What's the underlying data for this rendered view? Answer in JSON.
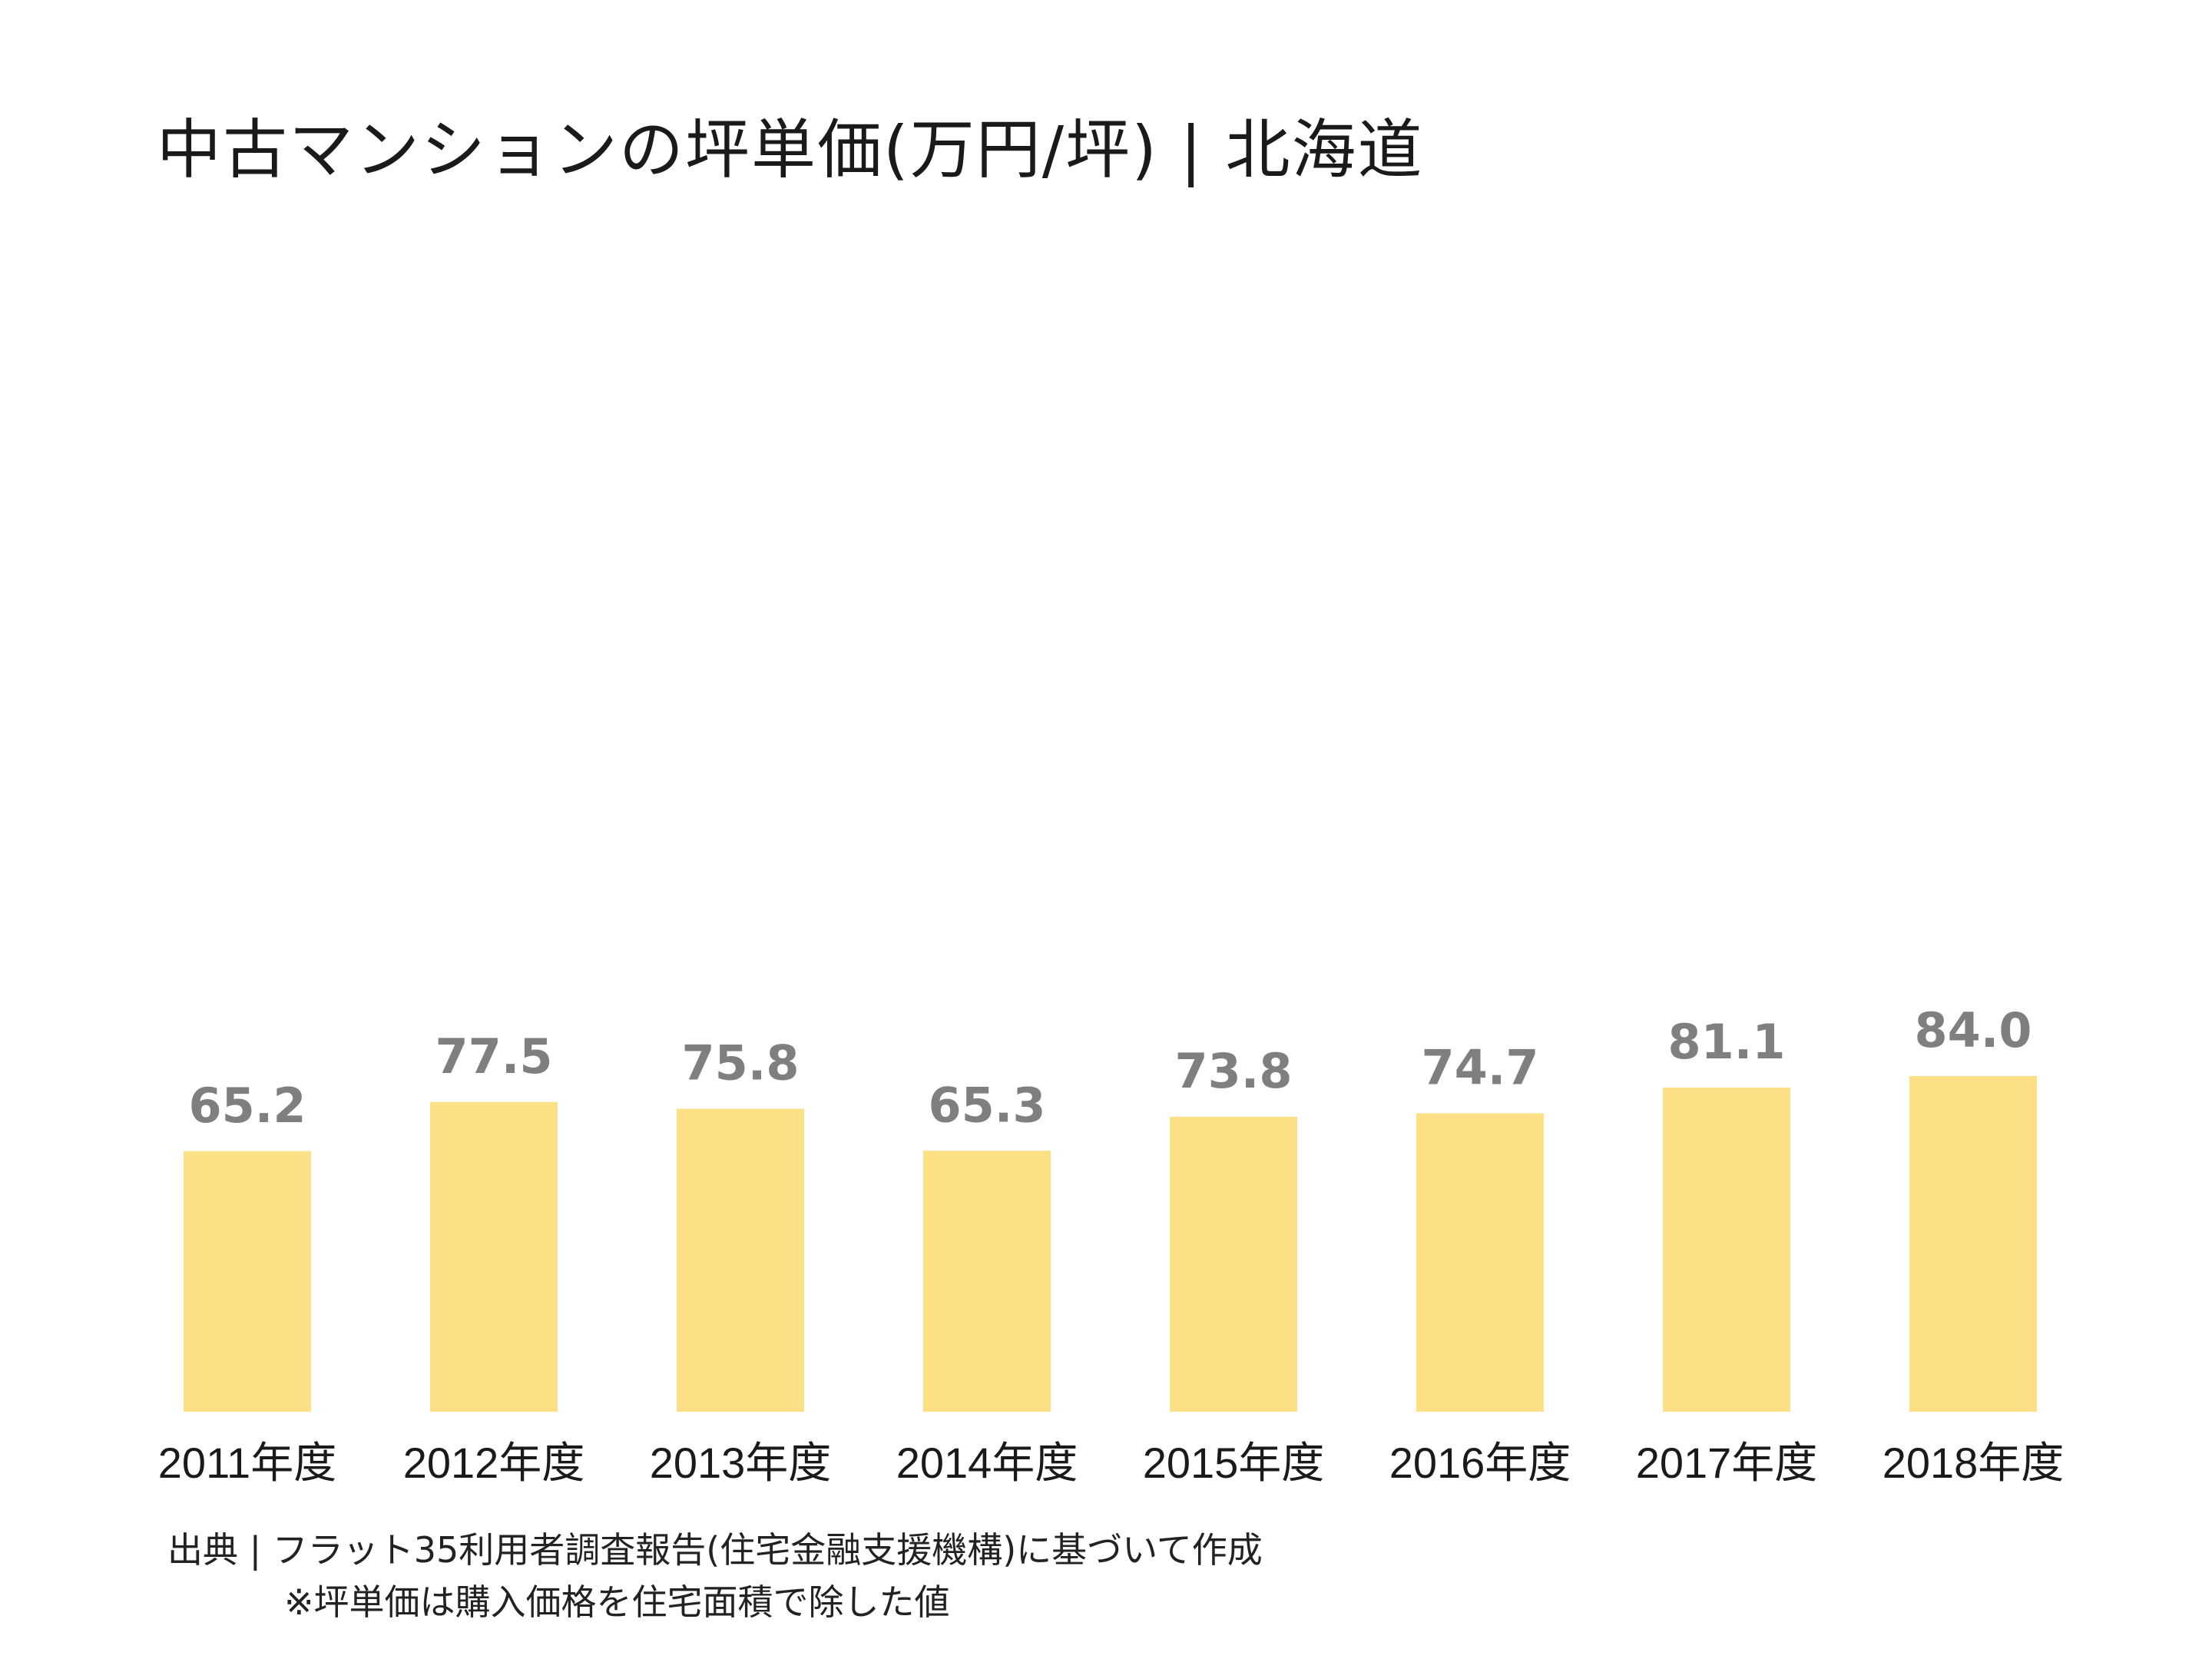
{
  "title": "中古マンションの坪単価(万円/坪) | 北海道",
  "footer": {
    "source": "出典 | フラット35利用者調査報告(住宅金融支援機構)に基づいて作成",
    "note": "※坪単価は購入価格を住宅面積で除した値"
  },
  "colors": {
    "bar": "#FDDF85",
    "value_label": "#7F7F7F",
    "category_label": "#1A1A1A"
  },
  "chart_data": {
    "type": "bar",
    "categories": [
      "2011年度",
      "2012年度",
      "2013年度",
      "2014年度",
      "2015年度",
      "2016年度",
      "2017年度",
      "2018年度"
    ],
    "values": [
      65.2,
      77.5,
      75.8,
      65.3,
      73.8,
      74.7,
      81.1,
      84.0
    ],
    "value_labels": [
      "65.2",
      "77.5",
      "75.8",
      "65.3",
      "73.8",
      "74.7",
      "81.1",
      "84.0"
    ],
    "ylim": [
      0,
      84.0
    ],
    "grid": false,
    "legend": "none"
  }
}
